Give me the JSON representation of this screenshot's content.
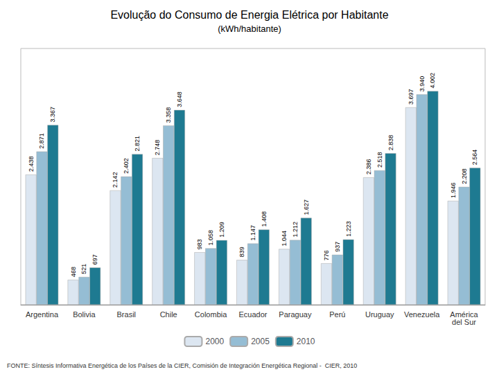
{
  "chart_data": {
    "type": "bar",
    "title": "Evolução do Consumo de Energia Elétrica por Habitante",
    "subtitle": "(kWh/habitante)",
    "annotations": [
      "FONTE: Síntesis Informativa Energética de los Países de la CIER, Comisión de Integración Energética Regional -  CIER, 2010"
    ],
    "categories": [
      "Argentina",
      "Bolivia",
      "Brasil",
      "Chile",
      "Colombia",
      "Ecuador",
      "Paraguay",
      "Perú",
      "Uruguay",
      "Venezuela",
      "América\ndel Sur"
    ],
    "series": [
      {
        "name": "2000",
        "color": "#dce6f1",
        "values": [
          2438,
          468,
          2142,
          2748,
          983,
          839,
          1044,
          776,
          2386,
          3697,
          1946
        ],
        "value_labels": [
          "2.438",
          "468",
          "2.142",
          "2.748",
          "983",
          "839",
          "1.044",
          "776",
          "2.386",
          "3.697",
          "1.946"
        ]
      },
      {
        "name": "2005",
        "color": "#95bdd4",
        "values": [
          2871,
          521,
          2402,
          3358,
          1058,
          1147,
          1212,
          937,
          2518,
          3940,
          2208
        ],
        "value_labels": [
          "2.871",
          "521",
          "2.402",
          "3.358",
          "1.058",
          "1.147",
          "1.212",
          "937",
          "2.518",
          "3.940",
          "2.208"
        ]
      },
      {
        "name": "2010",
        "color": "#1e7a91",
        "values": [
          3367,
          697,
          2821,
          3648,
          1209,
          1408,
          1627,
          1223,
          2838,
          4002,
          2564
        ],
        "value_labels": [
          "3.367",
          "697",
          "2.821",
          "3.648",
          "1.209",
          "1.408",
          "1.627",
          "1.223",
          "2.838",
          "4.002",
          "2.564"
        ]
      }
    ],
    "ylim": [
      0,
      4800
    ],
    "tick_labels": "x",
    "grid": false,
    "legend": "bottom",
    "data_labels": true
  }
}
